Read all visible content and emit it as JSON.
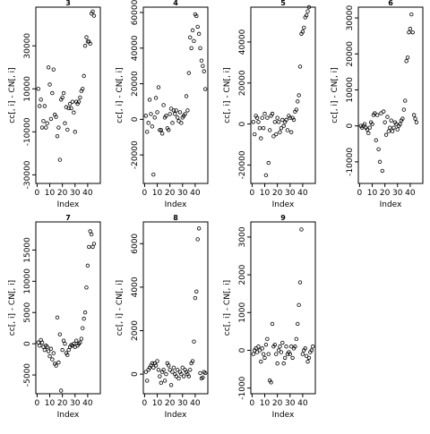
{
  "chart_data": [
    {
      "type": "scatter",
      "title": "3",
      "xlabel": "Index",
      "ylabel": "cc[, i] - CN[, i]",
      "xlim": [
        -1,
        50
      ],
      "ylim": [
        -34000,
        48000
      ],
      "xticks": [
        0,
        10,
        20,
        30,
        40
      ],
      "yticks": [
        -30000,
        -10000,
        10000,
        30000
      ],
      "y": [
        10000,
        2000,
        5000,
        -8000,
        -5000,
        2000,
        -8000,
        -6000,
        20000,
        12000,
        -4000,
        8000,
        19000,
        -2000,
        -3000,
        -12000,
        -8000,
        -23000,
        5000,
        6000,
        8000,
        -6000,
        1500,
        -9000,
        1000,
        3000,
        1000,
        4000,
        -1000,
        -10000,
        4000,
        3000,
        4000,
        6000,
        9000,
        10000,
        16000,
        30000,
        34000,
        32000,
        32000,
        31000,
        45000,
        46000,
        44000
      ],
      "x": [
        1,
        2,
        3,
        4,
        5,
        6,
        7,
        8,
        9,
        10,
        11,
        12,
        13,
        14,
        15,
        16,
        17,
        18,
        19,
        20,
        21,
        22,
        23,
        24,
        25,
        26,
        27,
        28,
        29,
        30,
        31,
        32,
        33,
        34,
        35,
        36,
        37,
        38,
        39,
        40,
        41,
        42,
        43,
        44,
        45
      ]
    },
    {
      "type": "scatter",
      "title": "4",
      "xlabel": "Index",
      "ylabel": "cc[, i] - CN[, i]",
      "xlim": [
        -1,
        50
      ],
      "ylim": [
        -36000,
        63000
      ],
      "xticks": [
        0,
        10,
        20,
        30,
        40
      ],
      "yticks": [
        -20000,
        0,
        20000,
        40000,
        60000
      ],
      "x": [
        1,
        2,
        3,
        4,
        5,
        6,
        7,
        8,
        9,
        10,
        11,
        12,
        13,
        14,
        15,
        16,
        17,
        18,
        19,
        20,
        21,
        22,
        23,
        24,
        25,
        26,
        27,
        28,
        29,
        30,
        31,
        32,
        33,
        34,
        35,
        36,
        37,
        38,
        39,
        40,
        41,
        42,
        43,
        44,
        45,
        46,
        47,
        48
      ],
      "y": [
        2000,
        -7000,
        -2000,
        11000,
        3000,
        -4000,
        -31000,
        1000,
        12000,
        4000,
        18000,
        -6000,
        -6000,
        -8000,
        8000,
        1000,
        2000,
        -5000,
        -6000,
        3000,
        6000,
        -2000,
        5000,
        3000,
        5000,
        1000,
        -1000,
        4000,
        -2000,
        1000,
        2000,
        3000,
        13000,
        5000,
        26000,
        46000,
        40000,
        50000,
        44000,
        59000,
        58000,
        52000,
        48000,
        40000,
        33000,
        30000,
        27000,
        17000
      ]
    },
    {
      "type": "scatter",
      "title": "5",
      "xlabel": "Index",
      "ylabel": "cc[, i] - CN[, i]",
      "xlim": [
        -1,
        50
      ],
      "ylim": [
        -29000,
        57000
      ],
      "xticks": [
        0,
        10,
        20,
        30,
        40
      ],
      "yticks": [
        -20000,
        0,
        20000,
        40000
      ],
      "x": [
        1,
        2,
        3,
        4,
        5,
        6,
        7,
        8,
        9,
        10,
        11,
        12,
        13,
        14,
        15,
        16,
        17,
        18,
        19,
        20,
        21,
        22,
        23,
        24,
        25,
        26,
        27,
        28,
        29,
        30,
        31,
        32,
        33,
        34,
        35,
        36,
        37,
        38,
        39,
        40,
        41,
        42,
        43,
        44,
        45
      ],
      "y": [
        1000,
        -5000,
        4000,
        3000,
        1000,
        -2000,
        -7000,
        3000,
        -2000,
        5000,
        -25000,
        3000,
        -19000,
        -3000,
        4000,
        5000,
        -6000,
        1000,
        -5000,
        3000,
        1000,
        -4000,
        -2000,
        2000,
        -1000,
        1000,
        2000,
        -3000,
        4000,
        3000,
        -4000,
        3000,
        2000,
        6000,
        7000,
        11000,
        14000,
        28000,
        44000,
        45000,
        47000,
        52000,
        53000,
        55000,
        57000
      ]
    },
    {
      "type": "scatter",
      "title": "6",
      "xlabel": "Index",
      "ylabel": "cc[, i] - CN[, i]",
      "xlim": [
        -1,
        50
      ],
      "ylim": [
        -16000,
        33000
      ],
      "xticks": [
        0,
        10,
        20,
        30,
        40
      ],
      "yticks": [
        -10000,
        0,
        10000,
        20000,
        30000
      ],
      "x": [
        1,
        2,
        3,
        4,
        5,
        6,
        7,
        8,
        9,
        10,
        11,
        12,
        13,
        14,
        15,
        16,
        17,
        18,
        19,
        20,
        21,
        22,
        23,
        24,
        25,
        26,
        27,
        28,
        29,
        30,
        31,
        32,
        33,
        34,
        35,
        36,
        37,
        38,
        39,
        40,
        41,
        42,
        43,
        44,
        45
      ],
      "y": [
        0,
        -500,
        0,
        500,
        -500,
        -1000,
        -2000,
        -500,
        1000,
        500,
        3000,
        3500,
        -4000,
        3000,
        -6500,
        -10000,
        3500,
        -12500,
        4000,
        1000,
        -2500,
        2500,
        -1500,
        -500,
        1500,
        -1500,
        -500,
        1000,
        500,
        -1000,
        0,
        500,
        1500,
        2000,
        4500,
        7000,
        18000,
        19000,
        26000,
        27000,
        31000,
        26000,
        3000,
        2000,
        1000
      ]
    },
    {
      "type": "scatter",
      "title": "7",
      "xlabel": "Index",
      "ylabel": "cc[, i] - CN[, i]",
      "xlim": [
        -1,
        50
      ],
      "ylim": [
        -8000,
        19500
      ],
      "xticks": [
        0,
        10,
        20,
        30,
        40
      ],
      "yticks": [
        -5000,
        0,
        5000,
        10000,
        15000
      ],
      "x": [
        1,
        2,
        3,
        4,
        5,
        6,
        7,
        8,
        9,
        10,
        11,
        12,
        13,
        14,
        15,
        16,
        17,
        18,
        19,
        20,
        21,
        22,
        23,
        24,
        25,
        26,
        27,
        28,
        29,
        30,
        31,
        32,
        33,
        34,
        35,
        36,
        37,
        38,
        39,
        40,
        41,
        42,
        43,
        44,
        45
      ],
      "y": [
        200,
        -300,
        600,
        200,
        -500,
        -1000,
        -300,
        -500,
        -1200,
        -2000,
        -800,
        -2500,
        -1500,
        -3200,
        -3500,
        4200,
        -3000,
        1500,
        -7500,
        -1000,
        500,
        0,
        -1500,
        -1800,
        -1000,
        -500,
        -200,
        -300,
        0,
        -500,
        500,
        -300,
        0,
        200,
        800,
        2500,
        4000,
        5000,
        9000,
        12500,
        15500,
        18000,
        17500,
        15500,
        16000
      ]
    },
    {
      "type": "scatter",
      "title": "8",
      "xlabel": "Index",
      "ylabel": "cc[, i] - CN[, i]",
      "xlim": [
        -1,
        50
      ],
      "ylim": [
        -900,
        7000
      ],
      "xticks": [
        0,
        10,
        20,
        30,
        40
      ],
      "yticks": [
        0,
        2000,
        4000,
        6000
      ],
      "x": [
        1,
        2,
        3,
        4,
        5,
        6,
        7,
        8,
        9,
        10,
        11,
        12,
        13,
        14,
        15,
        16,
        17,
        18,
        19,
        20,
        21,
        22,
        23,
        24,
        25,
        26,
        27,
        28,
        29,
        30,
        31,
        32,
        33,
        34,
        35,
        36,
        37,
        38,
        39,
        40,
        41,
        42,
        43,
        44,
        45,
        46,
        47,
        48
      ],
      "y": [
        100,
        -300,
        200,
        300,
        400,
        500,
        300,
        500,
        400,
        600,
        200,
        -100,
        -400,
        100,
        200,
        -300,
        0,
        500,
        400,
        200,
        -500,
        100,
        300,
        0,
        -100,
        200,
        -200,
        100,
        0,
        300,
        -100,
        200,
        100,
        0,
        -100,
        200,
        500,
        600,
        1500,
        3500,
        3800,
        6200,
        6700,
        50,
        -200,
        -150,
        100,
        50
      ]
    },
    {
      "type": "scatter",
      "title": "9",
      "xlabel": "Index",
      "ylabel": "cc[, i] - CN[, i]",
      "xlim": [
        -1,
        50
      ],
      "ylim": [
        -1150,
        3400
      ],
      "xticks": [
        0,
        10,
        20,
        30,
        40
      ],
      "yticks": [
        -1000,
        0,
        1000,
        2000,
        3000
      ],
      "x": [
        1,
        2,
        3,
        4,
        5,
        6,
        7,
        8,
        9,
        10,
        11,
        12,
        13,
        14,
        15,
        16,
        17,
        18,
        19,
        20,
        21,
        22,
        23,
        24,
        25,
        26,
        27,
        28,
        29,
        30,
        31,
        32,
        33,
        34,
        35,
        36,
        37,
        38,
        39,
        40,
        41,
        42,
        43,
        44,
        45,
        46,
        47,
        48
      ],
      "y": [
        -100,
        0,
        50,
        -50,
        100,
        0,
        -300,
        50,
        -100,
        -200,
        150,
        300,
        -100,
        -800,
        -850,
        700,
        100,
        150,
        -100,
        -350,
        0,
        100,
        -50,
        200,
        -350,
        -200,
        100,
        -100,
        -50,
        -100,
        100,
        -200,
        50,
        100,
        300,
        700,
        1200,
        1800,
        3200,
        -100,
        0,
        50,
        -150,
        -300,
        -200,
        -50,
        0,
        100
      ]
    }
  ]
}
